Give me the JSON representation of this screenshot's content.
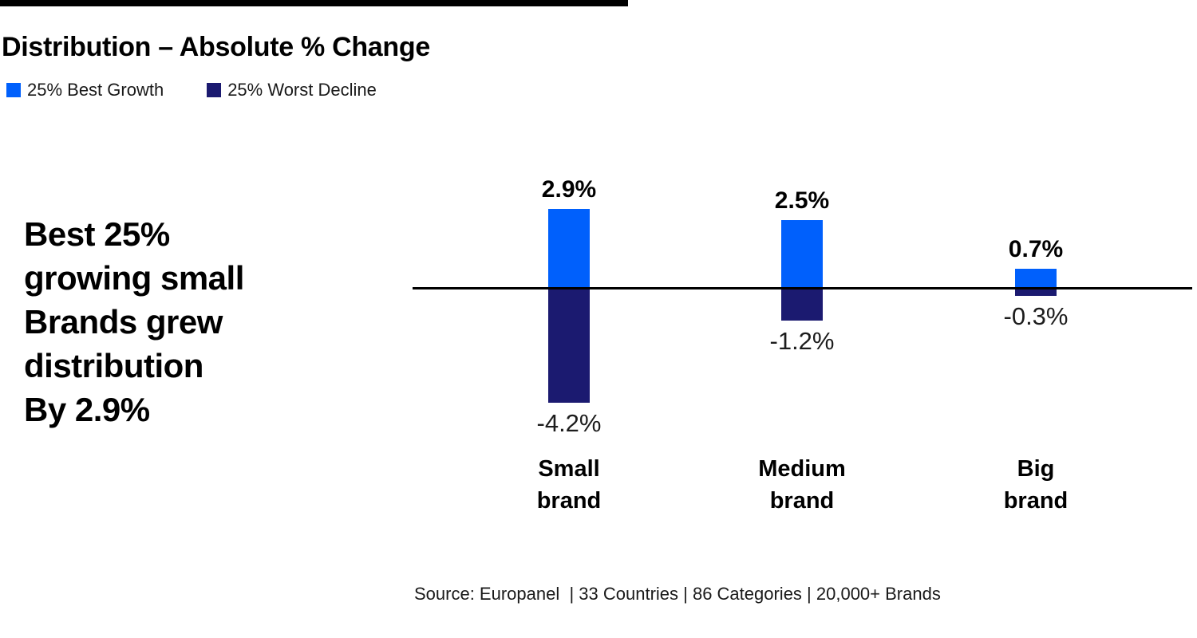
{
  "header": {
    "title": "Distribution – Absolute % Change"
  },
  "legend": {
    "items": [
      {
        "label": "25% Best Growth",
        "color": "#0060FC"
      },
      {
        "label": "25% Worst Decline",
        "color": "#1B1A70"
      }
    ]
  },
  "headline": {
    "lines": [
      "Best 25%",
      "growing small",
      "Brands grew",
      "distribution",
      "By 2.9%"
    ]
  },
  "chart_data": {
    "type": "bar",
    "title": "Distribution – Absolute % Change",
    "categories": [
      "Small brand",
      "Medium brand",
      "Big brand"
    ],
    "category_lines": [
      [
        "Small",
        "brand"
      ],
      [
        "Medium",
        "brand"
      ],
      [
        "Big",
        "brand"
      ]
    ],
    "series": [
      {
        "name": "25% Best Growth",
        "color": "#0060FC",
        "values": [
          2.9,
          2.5,
          0.7
        ],
        "labels": [
          "2.9%",
          "2.5%",
          "0.7%"
        ]
      },
      {
        "name": "25% Worst Decline",
        "color": "#1B1A70",
        "values": [
          -4.2,
          -1.2,
          -0.3
        ],
        "labels": [
          "-4.2%",
          "-1.2%",
          "-0.3%"
        ]
      }
    ],
    "baseline": 0,
    "ylim": [
      -4.5,
      3.2
    ],
    "grid": false,
    "legend_position": "top-left",
    "accent_bar_color": "#000000"
  },
  "source": {
    "text": "Source: Europanel  | 33 Countries | 86 Categories | 20,000+ Brands"
  }
}
